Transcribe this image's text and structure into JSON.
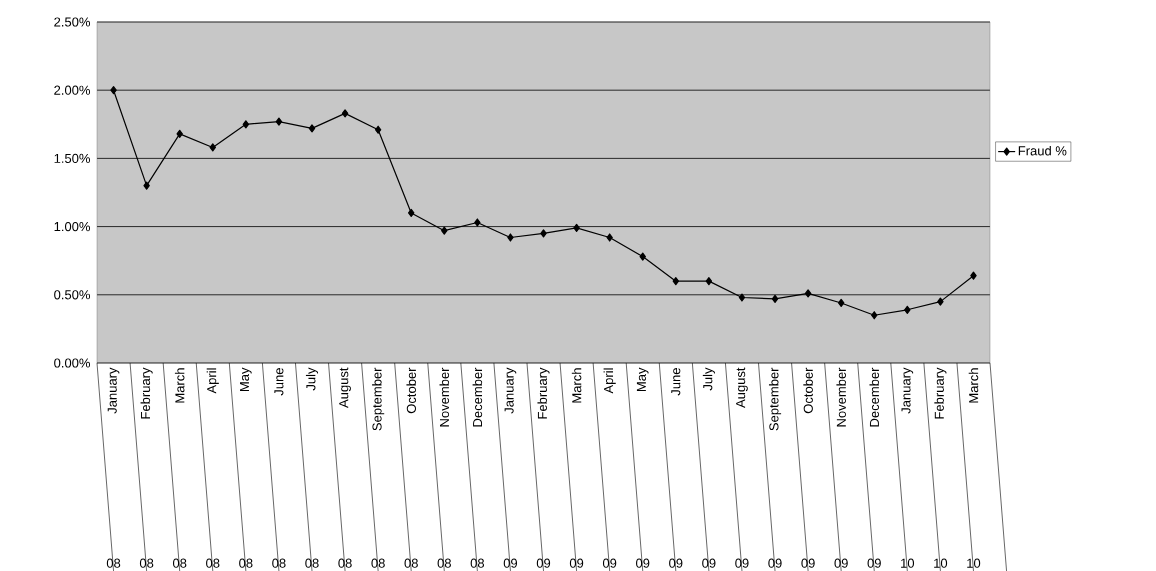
{
  "chart_data": {
    "type": "line",
    "categories": [
      "January",
      "February",
      "March",
      "April",
      "May",
      "June",
      "July",
      "August",
      "September",
      "October",
      "November",
      "December",
      "January",
      "February",
      "March",
      "April",
      "May",
      "June",
      "July",
      "August",
      "September",
      "October",
      "November",
      "December",
      "January",
      "February",
      "March"
    ],
    "series": [
      {
        "name": "Fraud %",
        "color": "#000000",
        "values": [
          2.0,
          1.3,
          1.68,
          1.58,
          1.75,
          1.77,
          1.72,
          1.83,
          1.71,
          1.1,
          0.97,
          1.03,
          0.92,
          0.95,
          0.99,
          0.92,
          0.78,
          0.6,
          0.6,
          0.48,
          0.47,
          0.51,
          0.44,
          0.35,
          0.39,
          0.45,
          0.64
        ]
      }
    ],
    "annotations": [
      "08",
      "08",
      "08",
      "08",
      "08",
      "08",
      "08",
      "08",
      "08",
      "08",
      "08",
      "08",
      "09",
      "09",
      "09",
      "09",
      "09",
      "09",
      "09",
      "09",
      "09",
      "09",
      "09",
      "09",
      "10",
      "10",
      "10"
    ],
    "ylim": [
      0,
      2.5
    ],
    "yticks": [
      {
        "value": 0,
        "label": "0.00%"
      },
      {
        "value": 0.5,
        "label": "0.50%"
      },
      {
        "value": 1,
        "label": "1.00%"
      },
      {
        "value": 1.5,
        "label": "1.50%"
      },
      {
        "value": 2,
        "label": "2.00%"
      },
      {
        "value": 2.5,
        "label": "2.50%"
      }
    ],
    "grid": "y",
    "legend": "right",
    "marker": "diamond",
    "line_style": "solid"
  }
}
